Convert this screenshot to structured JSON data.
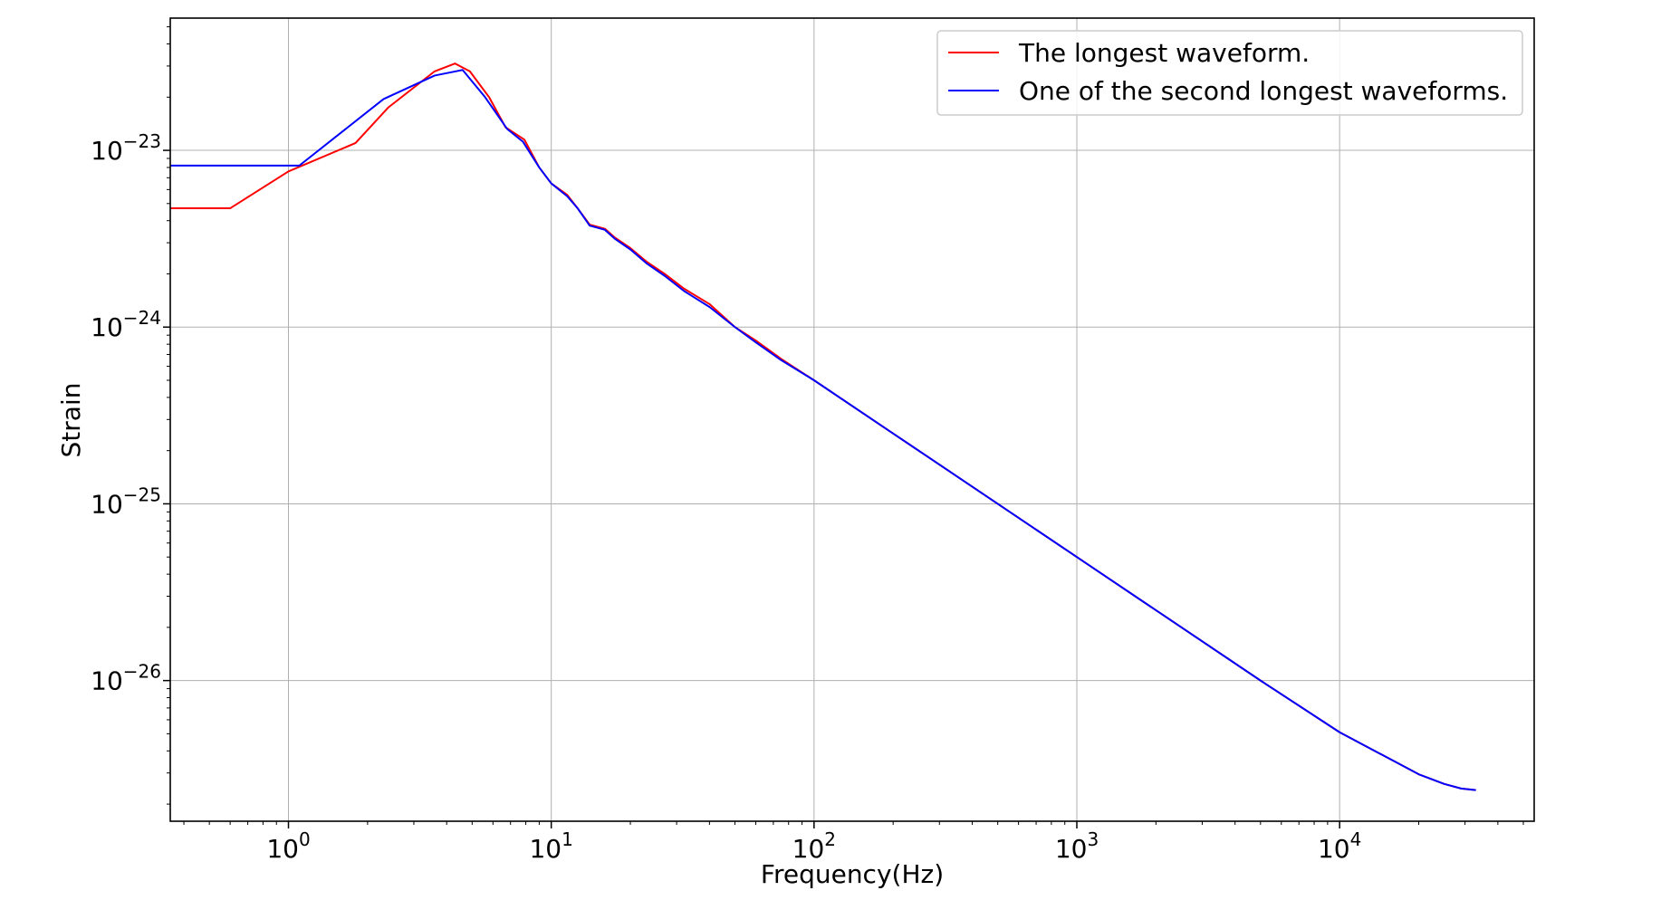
{
  "chart_data": {
    "type": "line",
    "title": "",
    "xlabel": "Frequency(Hz)",
    "ylabel": "Strain",
    "xscale": "log",
    "yscale": "log",
    "xlim": [
      0.355,
      55000
    ],
    "ylim": [
      1.6e-27,
      5.6e-23
    ],
    "grid": true,
    "legend_position": "top-right",
    "x_ticks": [
      {
        "base": "10",
        "exp": "0",
        "value": 1
      },
      {
        "base": "10",
        "exp": "1",
        "value": 10
      },
      {
        "base": "10",
        "exp": "2",
        "value": 100
      },
      {
        "base": "10",
        "exp": "3",
        "value": 1000
      },
      {
        "base": "10",
        "exp": "4",
        "value": 10000
      }
    ],
    "y_ticks": [
      {
        "base": "10",
        "exp": "−23",
        "value": 1e-23
      },
      {
        "base": "10",
        "exp": "−24",
        "value": 1e-24
      },
      {
        "base": "10",
        "exp": "−25",
        "value": 1e-25
      },
      {
        "base": "10",
        "exp": "−26",
        "value": 1e-26
      }
    ],
    "series": [
      {
        "name": "The longest waveform.",
        "color": "#ff0000",
        "x": [
          0.355,
          0.6,
          1.0,
          1.8,
          2.4,
          3.6,
          4.3,
          4.9,
          5.8,
          6.7,
          7.9,
          9.0,
          10.0,
          11.5,
          12.6,
          14.0,
          16.0,
          17.5,
          20.0,
          23.0,
          27.0,
          32.0,
          40.0,
          50.0,
          60.0,
          75.0,
          100.0,
          200.0,
          500.0,
          1000.0,
          2000.0,
          5000.0,
          10000.0,
          20000.0,
          25000.0,
          29000.0,
          33000.0
        ],
        "y": [
          4.7e-24,
          4.7e-24,
          7.6e-24,
          1.1e-23,
          1.75e-23,
          2.8e-23,
          3.1e-23,
          2.8e-23,
          2e-23,
          1.35e-23,
          1.15e-23,
          8e-24,
          6.5e-24,
          5.6e-24,
          4.7e-24,
          3.8e-24,
          3.6e-24,
          3.2e-24,
          2.8e-24,
          2.35e-24,
          2e-24,
          1.65e-24,
          1.35e-24,
          1e-24,
          8.4e-25,
          6.6e-25,
          5e-25,
          2.5e-25,
          1e-25,
          5e-26,
          2.5e-26,
          1e-26,
          5.1e-27,
          2.95e-27,
          2.6e-27,
          2.45e-27,
          2.4e-27
        ]
      },
      {
        "name": "One of the second longest waveforms.",
        "color": "#0000ff",
        "x": [
          0.355,
          1.1,
          2.3,
          3.6,
          4.6,
          5.6,
          6.8,
          7.8,
          9.0,
          10.0,
          11.5,
          12.6,
          14.0,
          16.0,
          17.5,
          20.0,
          23.0,
          27.0,
          32.0,
          40.0,
          50.0,
          60.0,
          75.0,
          100.0,
          200.0,
          500.0,
          1000.0,
          2000.0,
          5000.0,
          10000.0,
          20000.0,
          25000.0,
          29000.0,
          33000.0
        ],
        "y": [
          8.2e-24,
          8.2e-24,
          1.95e-23,
          2.65e-23,
          2.85e-23,
          2e-23,
          1.32e-23,
          1.12e-23,
          8e-24,
          6.5e-24,
          5.5e-24,
          4.7e-24,
          3.75e-24,
          3.55e-24,
          3.15e-24,
          2.75e-24,
          2.3e-24,
          1.95e-24,
          1.6e-24,
          1.3e-24,
          1e-24,
          8.2e-25,
          6.5e-25,
          5e-25,
          2.5e-25,
          1e-25,
          5e-26,
          2.5e-26,
          1e-26,
          5.1e-27,
          2.95e-27,
          2.6e-27,
          2.45e-27,
          2.4e-27
        ]
      }
    ]
  }
}
